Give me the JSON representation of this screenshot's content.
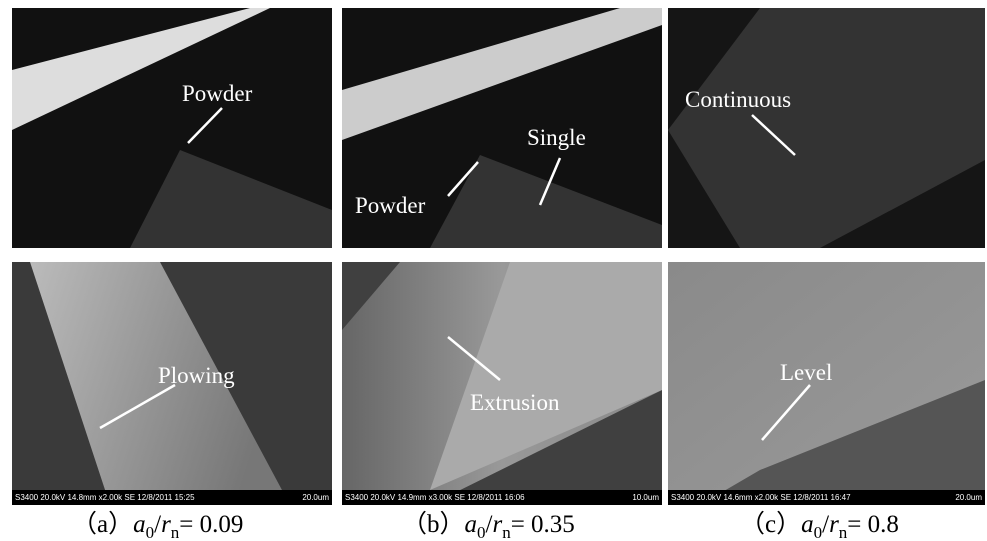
{
  "panels": [
    {
      "top_labels": [
        "Powder"
      ],
      "bottom_label": "Plowing",
      "sem_info": "S3400 20.0kV 14.8mm x2.00k SE 12/8/2011 15:25",
      "sem_scale": "20.0um",
      "caption": {
        "label": "（a）",
        "numerator": "a",
        "numerator_sub": "0",
        "slash": "/",
        "denominator": "r",
        "denominator_sub": "n",
        "value": "= 0.09"
      }
    },
    {
      "top_labels": [
        "Powder",
        "Single"
      ],
      "bottom_label": "Extrusion",
      "sem_info": "S3400 20.0kV 14.9mm x3.00k SE 12/8/2011 16:06",
      "sem_scale": "10.0um",
      "caption": {
        "label": "（b）",
        "numerator": "a",
        "numerator_sub": "0",
        "slash": "/",
        "denominator": "r",
        "denominator_sub": "n",
        "value": "= 0.35"
      }
    },
    {
      "top_labels": [
        "Continuous"
      ],
      "bottom_label": "Level",
      "sem_info": "S3400 20.0kV 14.6mm x2.00k SE 12/8/2011 16:47",
      "sem_scale": "20.0um",
      "caption": {
        "label": "（c）",
        "numerator": "a",
        "numerator_sub": "0",
        "slash": "/",
        "denominator": "r",
        "denominator_sub": "n",
        "value": "= 0.8"
      }
    }
  ]
}
